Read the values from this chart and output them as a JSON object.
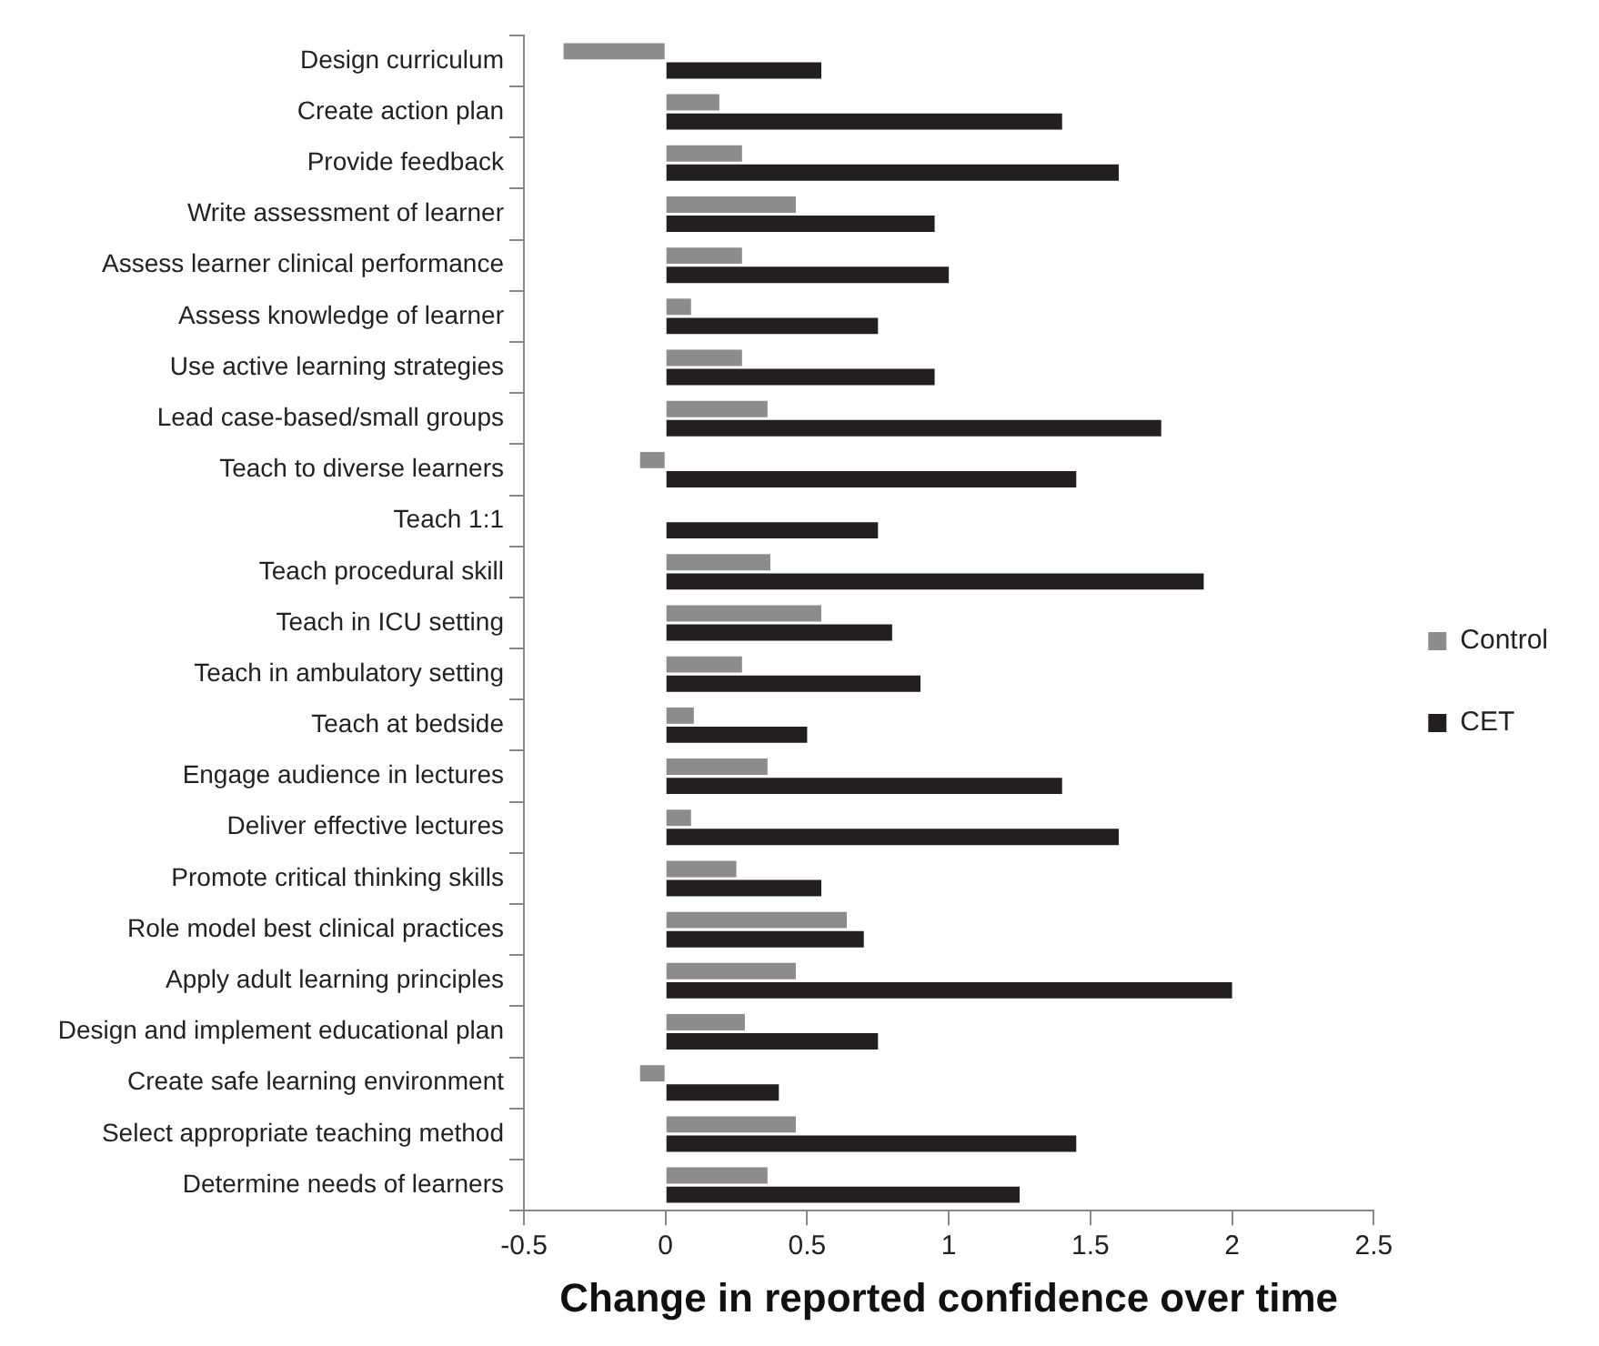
{
  "chart_data": {
    "type": "bar",
    "orientation": "horizontal",
    "xlabel": "Change in reported confidence over time",
    "categories": [
      "Design curriculum",
      "Create action plan",
      "Provide feedback",
      "Write assessment of learner",
      "Assess learner clinical performance",
      "Assess knowledge of learner",
      "Use active learning strategies",
      "Lead case-based/small groups",
      "Teach to diverse learners",
      "Teach 1:1",
      "Teach procedural skill",
      "Teach in ICU setting",
      "Teach in ambulatory setting",
      "Teach at bedside",
      "Engage audience in lectures",
      "Deliver effective lectures",
      "Promote critical thinking skills",
      "Role model best clinical practices",
      "Apply adult learning principles",
      "Design and implement educational plan",
      "Create safe learning environment",
      "Select appropriate teaching method",
      "Determine needs of learners"
    ],
    "series": [
      {
        "name": "Control",
        "color": "#8c8c8c",
        "values": [
          -0.36,
          0.19,
          0.27,
          0.46,
          0.27,
          0.09,
          0.27,
          0.36,
          -0.09,
          null,
          0.37,
          0.55,
          0.27,
          0.1,
          0.36,
          0.09,
          0.25,
          0.64,
          0.46,
          0.28,
          -0.09,
          0.46,
          0.36
        ]
      },
      {
        "name": "CET",
        "color": "#231f20",
        "values": [
          0.55,
          1.4,
          1.6,
          0.95,
          1.0,
          0.75,
          0.95,
          1.75,
          1.45,
          0.75,
          1.9,
          0.8,
          0.9,
          0.5,
          1.4,
          1.6,
          0.55,
          0.7,
          2.0,
          0.75,
          0.4,
          1.45,
          1.25
        ]
      }
    ],
    "xlim": [
      -0.5,
      2.5
    ],
    "xticks": [
      -0.5,
      0,
      0.5,
      1,
      1.5,
      2,
      2.5
    ],
    "grid": false,
    "legend": "right"
  }
}
